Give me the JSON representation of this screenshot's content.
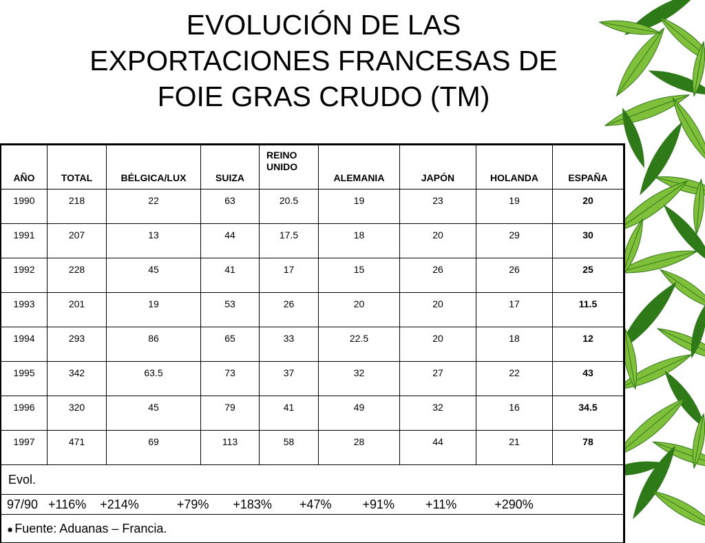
{
  "title": [
    "EVOLUCIÓN DE LAS",
    "EXPORTACIONES FRANCESAS DE",
    "FOIE GRAS CRUDO (TM)"
  ],
  "table": {
    "headers": [
      "AÑO",
      "TOTAL",
      "BÉLGICA/LUX",
      "SUIZA",
      "REINO UNIDO",
      "ALEMANIA",
      "JAPÓN",
      "HOLANDA",
      "ESPAÑA"
    ],
    "header_reino": [
      "REINO",
      "UNIDO"
    ],
    "rows": [
      [
        "1990",
        "218",
        "22",
        "63",
        "20.5",
        "19",
        "23",
        "19",
        "20"
      ],
      [
        "1991",
        "207",
        "13",
        "44",
        "17.5",
        "18",
        "20",
        "29",
        "30"
      ],
      [
        "1992",
        "228",
        "45",
        "41",
        "17",
        "15",
        "26",
        "26",
        "25"
      ],
      [
        "1993",
        "201",
        "19",
        "53",
        "26",
        "20",
        "20",
        "17",
        "11.5"
      ],
      [
        "1994",
        "293",
        "86",
        "65",
        "33",
        "22.5",
        "20",
        "18",
        "12"
      ],
      [
        "1995",
        "342",
        "63.5",
        "73",
        "37",
        "32",
        "27",
        "22",
        "43"
      ],
      [
        "1996",
        "320",
        "45",
        "79",
        "41",
        "49",
        "32",
        "16",
        "34.5"
      ],
      [
        "1997",
        "471",
        "69",
        "113",
        "58",
        "28",
        "44",
        "21",
        "78"
      ]
    ],
    "evol_label": "Evol.",
    "evol_values": "97/90   +116%    +214%           +79%       +183%        +47%         +91%         +11%           +290%",
    "source": "Fuente: Aduanas – Francia."
  },
  "colors": {
    "leaf_light": "#7fbf3a",
    "leaf_dark": "#2f7a18",
    "background": "#ffffff"
  },
  "icons": {
    "source_bullet": "asterisk-icon",
    "decoration": "bamboo-leaves"
  }
}
